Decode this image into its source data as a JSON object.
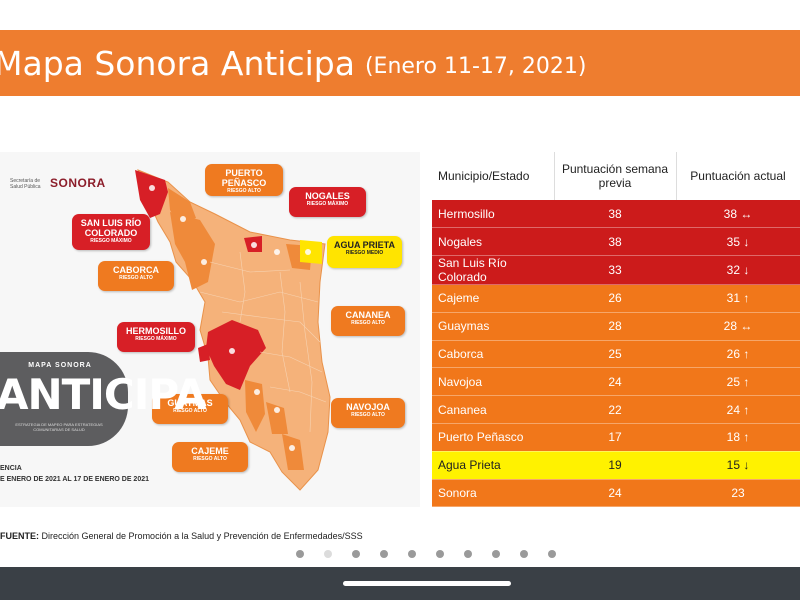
{
  "title": {
    "main": "Mapa Sonora Anticipa",
    "sub": "(Enero 11-17, 2021)"
  },
  "logos": {
    "secretaria": "Secretaría de Salud Pública",
    "sonora": "SONORA"
  },
  "badge": {
    "top": "MAPA SONORA",
    "main": "ANTICIPA",
    "sub": "ESTRATEGIA DE MAPEO PARA ESTRATEGIAS COMUNITARIAS DE SALUD"
  },
  "vigencia": {
    "label": "ENCIA",
    "range": "E ENERO DE 2021 AL 17 DE ENERO DE 2021"
  },
  "map_labels": [
    {
      "name": "PUERTO PEÑASCO",
      "risk": "RIESGO ALTO",
      "level": "orange"
    },
    {
      "name": "NOGALES",
      "risk": "RIESGO MÁXIMO",
      "level": "red"
    },
    {
      "name": "SAN LUIS RÍO COLORADO",
      "risk": "RIESGO MÁXIMO",
      "level": "red"
    },
    {
      "name": "AGUA PRIETA",
      "risk": "RIESGO MEDIO",
      "level": "yellow"
    },
    {
      "name": "CABORCA",
      "risk": "RIESGO ALTO",
      "level": "orange"
    },
    {
      "name": "CANANEA",
      "risk": "RIESGO ALTO",
      "level": "orange"
    },
    {
      "name": "HERMOSILLO",
      "risk": "RIESGO MÁXIMO",
      "level": "red"
    },
    {
      "name": "GUAYMAS",
      "risk": "RIESGO ALTO",
      "level": "orange"
    },
    {
      "name": "NAVOJOA",
      "risk": "RIESGO ALTO",
      "level": "orange"
    },
    {
      "name": "CAJEME",
      "risk": "RIESGO ALTO",
      "level": "orange"
    }
  ],
  "table": {
    "headers": [
      "Municipio/Estado",
      "Puntuación semana previa",
      "Puntuación actual"
    ],
    "rows": [
      {
        "municipio": "Hermosillo",
        "previa": "38",
        "actual": "38 ↔",
        "level": "red"
      },
      {
        "municipio": "Nogales",
        "previa": "38",
        "actual": "35 ↓",
        "level": "red"
      },
      {
        "municipio": "San Luis Río Colorado",
        "previa": "33",
        "actual": "32 ↓",
        "level": "red"
      },
      {
        "municipio": "Cajeme",
        "previa": "26",
        "actual": "31 ↑",
        "level": "orange"
      },
      {
        "municipio": "Guaymas",
        "previa": "28",
        "actual": "28 ↔",
        "level": "orange"
      },
      {
        "municipio": "Caborca",
        "previa": "25",
        "actual": "26 ↑",
        "level": "orange"
      },
      {
        "municipio": "Navojoa",
        "previa": "24",
        "actual": "25 ↑",
        "level": "orange"
      },
      {
        "municipio": "Cananea",
        "previa": "22",
        "actual": "24 ↑",
        "level": "orange"
      },
      {
        "municipio": "Puerto Peñasco",
        "previa": "17",
        "actual": "18 ↑",
        "level": "orange"
      },
      {
        "municipio": "Agua Prieta",
        "previa": "19",
        "actual": "15 ↓",
        "level": "yellow"
      },
      {
        "municipio": "Sonora",
        "previa": "24",
        "actual": "23",
        "level": "total"
      }
    ]
  },
  "footer": {
    "label": "FUENTE:",
    "text": "Dirección General de Promoción a la Salud y Prevención de Enfermedades/SSS"
  },
  "pager": {
    "count": 10,
    "active_index": 1
  },
  "colors": {
    "title_bar": "#ee7d2f",
    "risk_max": "#d71f26",
    "risk_high": "#ef7a20",
    "risk_medium": "#ffe400",
    "nav_bar": "#3a4046"
  }
}
